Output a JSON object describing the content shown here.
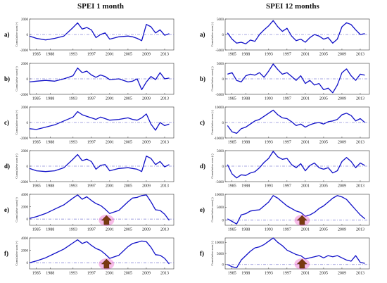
{
  "titles": {
    "left": "SPEI 1 month",
    "right": "SPEI 12 months"
  },
  "colors": {
    "line": "#1010c8",
    "zero_line": "#8a8ad8",
    "arrow": "#7a3a10",
    "arrow_glow": "#f06acb"
  },
  "chart_data": [
    {
      "type": "line",
      "column": "SPEI 1 month",
      "x_ticks": [
        "1985",
        "1988",
        "1993",
        "1997",
        "2001",
        "2005",
        "2009",
        "2013"
      ],
      "panels": [
        {
          "label": "a)",
          "ylabel": "Cumulative sum (-)",
          "ylim": [
            -2000,
            2000
          ],
          "yticks": [
            "2000",
            "0",
            "-2000"
          ],
          "x": [
            1983.5,
            1985,
            1987,
            1989,
            1991,
            1993,
            1994,
            1995,
            1996,
            1997,
            1998,
            1999,
            2000,
            2001,
            2003,
            2005,
            2006,
            2007,
            2008,
            2009,
            2010,
            2011,
            2012,
            2013,
            2014
          ],
          "y": [
            -200,
            -500,
            -700,
            -500,
            -200,
            900,
            1500,
            700,
            900,
            600,
            -400,
            0,
            200,
            -600,
            -300,
            -200,
            -300,
            -500,
            -800,
            1300,
            1000,
            200,
            600,
            -100,
            100
          ]
        },
        {
          "label": "b)",
          "ylabel": "Cumulative sum (-)",
          "ylim": [
            -2000,
            2000
          ],
          "yticks": [
            "2000",
            "0",
            "-2000"
          ],
          "x": [
            1983.5,
            1985,
            1987,
            1989,
            1991,
            1993,
            1994,
            1995,
            1996,
            1997,
            1998,
            1999,
            2000,
            2001,
            2003,
            2005,
            2006,
            2007,
            2008,
            2009,
            2010,
            2011,
            2012,
            2013,
            2014
          ],
          "y": [
            -400,
            -300,
            -200,
            -300,
            0,
            400,
            1400,
            800,
            1000,
            500,
            200,
            500,
            300,
            -100,
            0,
            -400,
            -300,
            0,
            -1400,
            -400,
            300,
            -100,
            800,
            0,
            100
          ]
        },
        {
          "label": "c)",
          "ylabel": "Cumulative sum (-)",
          "ylim": [
            -2000,
            2000
          ],
          "yticks": [
            "2000",
            "0",
            "-2000"
          ],
          "x": [
            1983.5,
            1985,
            1987,
            1989,
            1991,
            1993,
            1994,
            1995,
            1996,
            1997,
            1998,
            1999,
            2000,
            2001,
            2003,
            2005,
            2006,
            2007,
            2008,
            2009,
            2010,
            2011,
            2012,
            2013,
            2014
          ],
          "y": [
            -800,
            -900,
            -600,
            -300,
            200,
            700,
            1400,
            1000,
            800,
            600,
            400,
            700,
            500,
            300,
            400,
            600,
            400,
            300,
            600,
            1100,
            -200,
            -1000,
            0,
            -400,
            -200
          ]
        },
        {
          "label": "d)",
          "ylabel": "Cumulative sum (-)",
          "ylim": [
            -2000,
            2000
          ],
          "yticks": [
            "2000",
            "0",
            "-2000"
          ],
          "x": [
            1983.5,
            1985,
            1987,
            1989,
            1991,
            1993,
            1994,
            1995,
            1996,
            1997,
            1998,
            1999,
            2000,
            2001,
            2003,
            2005,
            2006,
            2007,
            2008,
            2009,
            2010,
            2011,
            2012,
            2013,
            2014
          ],
          "y": [
            -300,
            -600,
            -700,
            -600,
            -200,
            900,
            1500,
            700,
            900,
            600,
            -400,
            100,
            200,
            -600,
            -300,
            -200,
            -300,
            -400,
            -700,
            1300,
            1000,
            200,
            600,
            -100,
            200
          ]
        },
        {
          "label": "e)",
          "ylabel": "Cumulative sum (-)",
          "ylim": [
            -1000,
            4000
          ],
          "yticks": [
            "4000",
            "2000",
            "0"
          ],
          "x": [
            1983.5,
            1985,
            1987,
            1989,
            1991,
            1993,
            1994,
            1995,
            1996,
            1997,
            1998,
            1999,
            2000,
            2001,
            2003,
            2005,
            2006,
            2007,
            2008,
            2009,
            2010,
            2011,
            2012,
            2013,
            2014
          ],
          "y": [
            100,
            400,
            900,
            1600,
            2300,
            3400,
            3900,
            3200,
            3600,
            3000,
            2500,
            2200,
            1600,
            900,
            1400,
            2800,
            3400,
            3500,
            3800,
            3900,
            2800,
            1500,
            1400,
            800,
            -200
          ]
        },
        {
          "label": "f)",
          "ylabel": "Cumulative sum (-)",
          "ylim": [
            -1000,
            4000
          ],
          "yticks": [
            "4000",
            "2000",
            "0"
          ],
          "x": [
            1983.5,
            1985,
            1987,
            1989,
            1991,
            1993,
            1994,
            1995,
            1996,
            1997,
            1998,
            1999,
            2000,
            2001,
            2003,
            2005,
            2006,
            2007,
            2008,
            2009,
            2010,
            2011,
            2012,
            2013,
            2014
          ],
          "y": [
            0,
            300,
            800,
            1500,
            2200,
            3200,
            3700,
            3100,
            3400,
            2800,
            2300,
            2000,
            1400,
            700,
            1200,
            2600,
            3100,
            3300,
            3500,
            3400,
            2500,
            1300,
            1200,
            700,
            -200
          ]
        }
      ]
    },
    {
      "type": "line",
      "column": "SPEI 12 months",
      "x_ticks": [
        "1985",
        "1988",
        "1993",
        "1997",
        "2001",
        "2005",
        "2009",
        "2013"
      ],
      "panels": [
        {
          "label": "a)",
          "ylabel": "Cumulative sum (-)",
          "ylim": [
            -5000,
            5000
          ],
          "yticks": [
            "5000",
            "0",
            "-5000"
          ],
          "x": [
            1984,
            1985,
            1986,
            1987,
            1988,
            1989,
            1990,
            1991,
            1992,
            1993,
            1994,
            1995,
            1996,
            1997,
            1998,
            1999,
            2000,
            2001,
            2002,
            2003,
            2004,
            2005,
            2006,
            2007,
            2008,
            2009,
            2010,
            2011,
            2012,
            2013,
            2014
          ],
          "y": [
            500,
            -1500,
            -2800,
            -2500,
            -3000,
            -1800,
            -2200,
            0,
            1500,
            2800,
            4500,
            2500,
            1000,
            2000,
            -500,
            -2000,
            -1500,
            -2500,
            -1000,
            0,
            -500,
            -1500,
            -1000,
            -2800,
            -1500,
            2500,
            3800,
            3200,
            1500,
            0,
            300
          ]
        },
        {
          "label": "b)",
          "ylabel": "Cumulative sum (-)",
          "ylim": [
            -5000,
            5000
          ],
          "yticks": [
            "5000",
            "0",
            "-5000"
          ],
          "x": [
            1984,
            1985,
            1986,
            1987,
            1988,
            1989,
            1990,
            1991,
            1992,
            1993,
            1994,
            1995,
            1996,
            1997,
            1998,
            1999,
            2000,
            2001,
            2002,
            2003,
            2004,
            2005,
            2006,
            2007,
            2008,
            2009,
            2010,
            2011,
            2012,
            2013,
            2014
          ],
          "y": [
            1500,
            2000,
            -500,
            -1000,
            1000,
            1500,
            1200,
            2000,
            500,
            2500,
            4800,
            3000,
            1500,
            2000,
            800,
            -500,
            1000,
            -1500,
            -500,
            -2000,
            -1500,
            -3500,
            -3000,
            -4500,
            -2000,
            2000,
            3200,
            1000,
            -500,
            1500,
            1200
          ]
        },
        {
          "label": "c)",
          "ylabel": "Cumulative sum (-)",
          "ylim": [
            -10000,
            10000
          ],
          "yticks": [
            "10000",
            "0",
            "-10000"
          ],
          "x": [
            1984,
            1985,
            1986,
            1987,
            1988,
            1989,
            1990,
            1991,
            1992,
            1993,
            1994,
            1995,
            1996,
            1997,
            1998,
            1999,
            2000,
            2001,
            2002,
            2003,
            2004,
            2005,
            2006,
            2007,
            2008,
            2009,
            2010,
            2011,
            2012,
            2013,
            2014
          ],
          "y": [
            -2000,
            -6000,
            -7000,
            -4000,
            -3000,
            -1000,
            1000,
            2000,
            4000,
            6000,
            8000,
            5000,
            3000,
            2500,
            500,
            -2000,
            -1000,
            -3000,
            -1500,
            -500,
            0,
            -1000,
            500,
            1000,
            2000,
            5000,
            6000,
            4500,
            1000,
            2500,
            0
          ]
        },
        {
          "label": "d)",
          "ylabel": "Cumulative sum (-)",
          "ylim": [
            -5000,
            5000
          ],
          "yticks": [
            "5000",
            "0",
            "-5000"
          ],
          "x": [
            1984,
            1985,
            1986,
            1987,
            1988,
            1989,
            1990,
            1991,
            1992,
            1993,
            1994,
            1995,
            1996,
            1997,
            1998,
            1999,
            2000,
            2001,
            2002,
            2003,
            2004,
            2005,
            2006,
            2007,
            2008,
            2009,
            2010,
            2011,
            2012,
            2013,
            2014
          ],
          "y": [
            500,
            -2500,
            -3800,
            -2800,
            -3000,
            -2200,
            -1800,
            -500,
            1200,
            2500,
            4800,
            3000,
            2200,
            2500,
            500,
            -500,
            800,
            -1500,
            200,
            1000,
            -500,
            -1000,
            -500,
            -2200,
            -1500,
            1500,
            2800,
            1500,
            -500,
            1000,
            200
          ]
        },
        {
          "label": "e)",
          "ylabel": "Cumulative sum (-)",
          "ylim": [
            -2000,
            10000
          ],
          "yticks": [
            "10000",
            "5000",
            "0"
          ],
          "x": [
            1984,
            1985,
            1986,
            1987,
            1988,
            1989,
            1990,
            1991,
            1992,
            1993,
            1994,
            1995,
            1996,
            1997,
            1998,
            1999,
            2000,
            2001,
            2002,
            2003,
            2004,
            2005,
            2006,
            2007,
            2008,
            2009,
            2010,
            2011,
            2012,
            2013,
            2014
          ],
          "y": [
            500,
            -500,
            -1500,
            2000,
            2500,
            3500,
            3800,
            4000,
            5500,
            7000,
            9500,
            8500,
            7000,
            5500,
            4500,
            3500,
            3000,
            1500,
            2000,
            3000,
            4500,
            5500,
            7000,
            8500,
            9500,
            9000,
            8000,
            6000,
            4000,
            2000,
            500
          ]
        },
        {
          "label": "f)",
          "ylabel": "Cumulative sum (-)",
          "ylim": [
            -2000,
            12000
          ],
          "yticks": [
            "10000",
            "5000",
            "0"
          ],
          "x": [
            1984,
            1985,
            1986,
            1987,
            1988,
            1989,
            1990,
            1991,
            1992,
            1993,
            1994,
            1995,
            1996,
            1997,
            1998,
            1999,
            2000,
            2001,
            2002,
            2003,
            2004,
            2005,
            2006,
            2007,
            2008,
            2009,
            2010,
            2011,
            2012,
            2013,
            2014
          ],
          "y": [
            0,
            -1000,
            -1500,
            2000,
            4000,
            6000,
            7500,
            8000,
            9000,
            10500,
            12000,
            10000,
            8500,
            6500,
            5500,
            4500,
            4000,
            2500,
            3000,
            3500,
            4000,
            3000,
            4000,
            3500,
            4000,
            3000,
            2000,
            1500,
            4000,
            1000,
            500
          ]
        }
      ]
    }
  ]
}
